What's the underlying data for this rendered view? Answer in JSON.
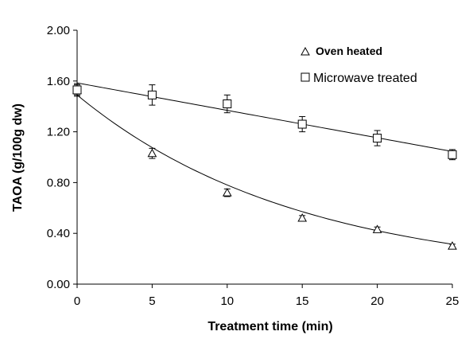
{
  "chart_data": {
    "type": "scatter",
    "xlabel": "Treatment time (min)",
    "ylabel": "TAOA (g/100g dw)",
    "xlim": [
      0,
      25
    ],
    "ylim": [
      0,
      2.0
    ],
    "x_ticks": [
      "0",
      "5",
      "10",
      "15",
      "20",
      "25"
    ],
    "y_ticks": [
      "0.00",
      "0.40",
      "0.80",
      "1.20",
      "1.60",
      "2.00"
    ],
    "grid": false,
    "legend_position": "top-right",
    "series": [
      {
        "name": "Oven heated",
        "marker": "triangle",
        "x": [
          0,
          5,
          10,
          15,
          20,
          25
        ],
        "y": [
          1.53,
          1.03,
          0.72,
          0.52,
          0.43,
          0.3
        ],
        "err": [
          0.04,
          0.04,
          0.03,
          0.02,
          0.02,
          0.015
        ],
        "fit": {
          "kind": "exponential",
          "a": 1.44,
          "k": 0.0678,
          "offset": 0.05
        }
      },
      {
        "name": "Microwave treated",
        "marker": "square",
        "x": [
          0,
          5,
          10,
          15,
          20,
          25
        ],
        "y": [
          1.53,
          1.49,
          1.42,
          1.26,
          1.15,
          1.02
        ],
        "err": [
          0.05,
          0.08,
          0.07,
          0.06,
          0.06,
          0.04
        ],
        "fit": {
          "kind": "linear",
          "intercept": 1.585,
          "slope": -0.0216
        }
      }
    ]
  }
}
